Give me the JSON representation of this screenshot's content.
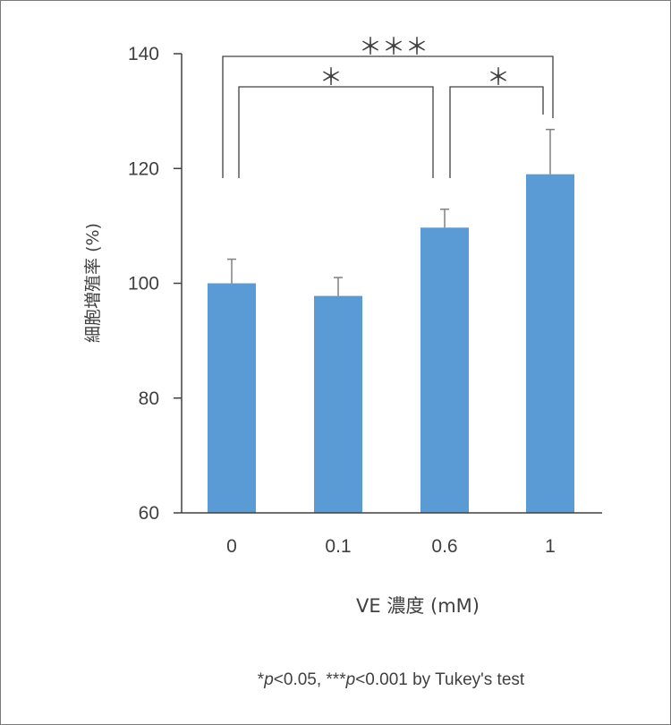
{
  "chart_data": {
    "type": "bar",
    "categories": [
      "0",
      "0.1",
      "0.6",
      "1"
    ],
    "values": [
      100,
      97.8,
      109.7,
      119
    ],
    "errors": [
      4.2,
      3.2,
      3.2,
      7.8
    ],
    "xlabel": "VE 濃度 (mM)",
    "ylabel": "細胞増殖率 (%)",
    "ylim": [
      60,
      140
    ],
    "yticks": [
      "60",
      "80",
      "100",
      "120",
      "140"
    ],
    "bar_color": "#5b9bd5",
    "error_color": "#808080",
    "grid": false,
    "significance": [
      {
        "from": "0",
        "to": "1",
        "label": "＊＊＊"
      },
      {
        "from": "0",
        "to": "0.6",
        "label": "＊"
      },
      {
        "from": "0.6",
        "to": "1",
        "label": "＊"
      }
    ],
    "footnote": "*p<0.05, ***p<0.001 by Tukey's test"
  }
}
